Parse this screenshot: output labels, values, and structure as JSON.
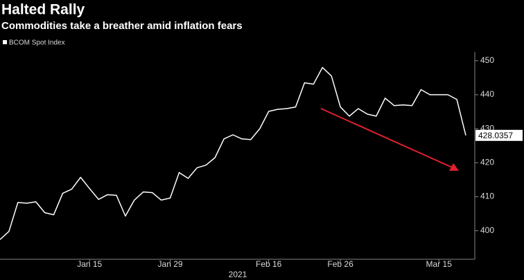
{
  "chart_data": {
    "type": "line",
    "title": "Halted Rally",
    "subtitle": "Commodities take a breather amid inflation fears",
    "xlabel": "2021",
    "categories": [
      null,
      null,
      null,
      null,
      null,
      null,
      null,
      null,
      null,
      null,
      "Jan 15",
      null,
      null,
      null,
      null,
      null,
      null,
      null,
      null,
      "Jan 29",
      null,
      null,
      null,
      null,
      null,
      null,
      null,
      null,
      null,
      null,
      "Feb 16",
      null,
      null,
      null,
      null,
      null,
      null,
      null,
      "Feb 26",
      null,
      null,
      null,
      null,
      null,
      null,
      null,
      null,
      null,
      null,
      "Mar 15",
      null,
      null,
      null
    ],
    "series": [
      {
        "name": "BCOM Spot Index",
        "color": "#ffffff",
        "values": [
          397.4,
          399.8,
          408.3,
          408.1,
          408.5,
          405.3,
          404.7,
          411,
          412.2,
          415.7,
          412.4,
          409.2,
          410.6,
          410.4,
          404.3,
          409,
          411.4,
          411.2,
          409,
          409.6,
          417.1,
          415.4,
          418.5,
          419.3,
          421.5,
          427,
          428.2,
          427,
          426.8,
          430,
          435.1,
          435.7,
          435.9,
          436.4,
          443.5,
          443.1,
          448,
          445.5,
          436.4,
          433.7,
          435.9,
          434.3,
          433.7,
          439,
          436.8,
          437,
          436.8,
          441.5,
          440,
          440,
          440,
          438.6,
          428.0357
        ]
      }
    ],
    "ylim": [
      391.6,
      452.6
    ],
    "yticks": [
      400,
      410,
      420,
      430,
      440,
      450
    ],
    "grid": false,
    "legend": "top-left"
  }
}
